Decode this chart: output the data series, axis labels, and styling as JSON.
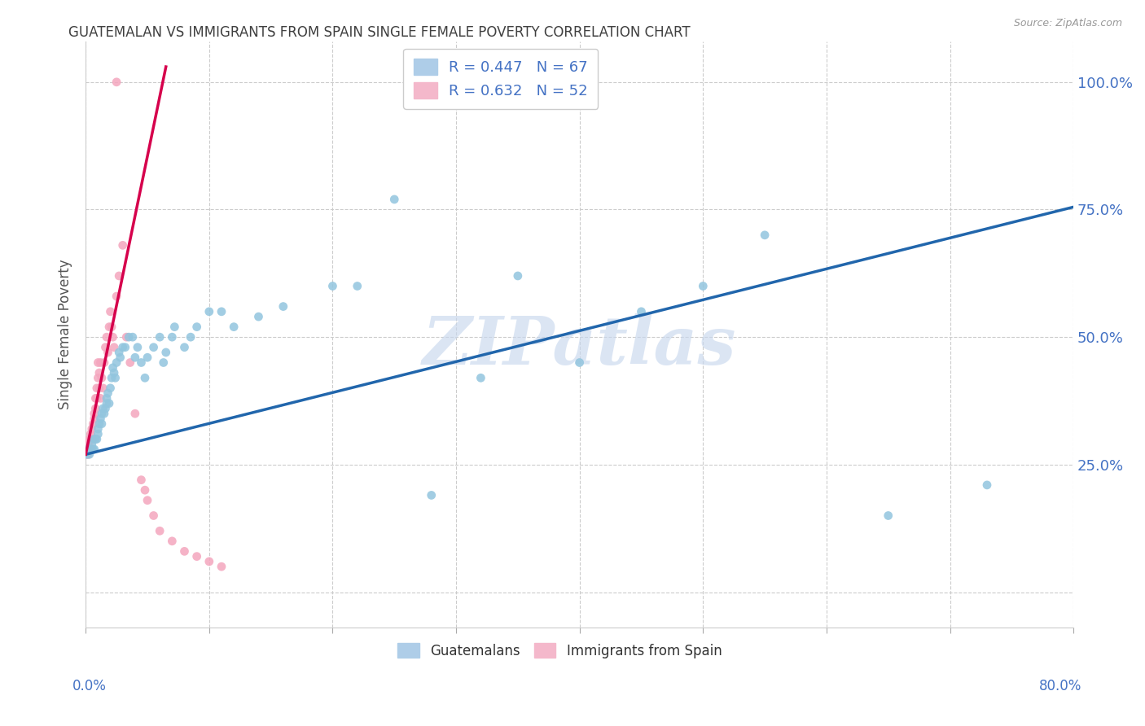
{
  "title": "GUATEMALAN VS IMMIGRANTS FROM SPAIN SINGLE FEMALE POVERTY CORRELATION CHART",
  "source": "Source: ZipAtlas.com",
  "ylabel": "Single Female Poverty",
  "yticks": [
    0.0,
    0.25,
    0.5,
    0.75,
    1.0
  ],
  "ytick_labels_right": [
    "",
    "25.0%",
    "50.0%",
    "75.0%",
    "100.0%"
  ],
  "xlim": [
    0.0,
    0.8
  ],
  "ylim": [
    -0.07,
    1.08
  ],
  "watermark": "ZIPatlas",
  "legend_blue_r": "R = 0.447",
  "legend_blue_n": "N = 67",
  "legend_pink_r": "R = 0.632",
  "legend_pink_n": "N = 52",
  "legend_label_blue": "Guatemalans",
  "legend_label_pink": "Immigrants from Spain",
  "blue_color": "#92c5de",
  "pink_color": "#f4a6be",
  "blue_line_color": "#2166ac",
  "pink_line_color": "#d6004c",
  "axis_color": "#4472c4",
  "title_color": "#404040",
  "blue_x": [
    0.001,
    0.002,
    0.003,
    0.004,
    0.005,
    0.005,
    0.006,
    0.007,
    0.007,
    0.008,
    0.009,
    0.01,
    0.01,
    0.011,
    0.012,
    0.013,
    0.013,
    0.014,
    0.015,
    0.016,
    0.017,
    0.017,
    0.018,
    0.019,
    0.02,
    0.021,
    0.022,
    0.023,
    0.024,
    0.025,
    0.027,
    0.028,
    0.03,
    0.032,
    0.035,
    0.038,
    0.04,
    0.042,
    0.045,
    0.048,
    0.05,
    0.055,
    0.06,
    0.063,
    0.065,
    0.07,
    0.072,
    0.08,
    0.085,
    0.09,
    0.1,
    0.11,
    0.12,
    0.14,
    0.16,
    0.2,
    0.22,
    0.25,
    0.28,
    0.32,
    0.35,
    0.4,
    0.45,
    0.5,
    0.55,
    0.65,
    0.73
  ],
  "blue_y": [
    0.27,
    0.28,
    0.27,
    0.28,
    0.28,
    0.29,
    0.28,
    0.28,
    0.3,
    0.3,
    0.3,
    0.32,
    0.31,
    0.33,
    0.34,
    0.33,
    0.35,
    0.36,
    0.35,
    0.36,
    0.38,
    0.37,
    0.39,
    0.37,
    0.4,
    0.42,
    0.44,
    0.43,
    0.42,
    0.45,
    0.47,
    0.46,
    0.48,
    0.48,
    0.5,
    0.5,
    0.46,
    0.48,
    0.45,
    0.42,
    0.46,
    0.48,
    0.5,
    0.45,
    0.47,
    0.5,
    0.52,
    0.48,
    0.5,
    0.52,
    0.55,
    0.55,
    0.52,
    0.54,
    0.56,
    0.6,
    0.6,
    0.77,
    0.19,
    0.42,
    0.62,
    0.45,
    0.55,
    0.6,
    0.7,
    0.15,
    0.21
  ],
  "pink_x": [
    0.001,
    0.001,
    0.002,
    0.002,
    0.003,
    0.003,
    0.004,
    0.004,
    0.005,
    0.005,
    0.006,
    0.006,
    0.007,
    0.007,
    0.008,
    0.008,
    0.009,
    0.009,
    0.01,
    0.01,
    0.011,
    0.011,
    0.012,
    0.012,
    0.013,
    0.014,
    0.015,
    0.016,
    0.017,
    0.018,
    0.019,
    0.02,
    0.021,
    0.022,
    0.023,
    0.025,
    0.027,
    0.03,
    0.033,
    0.036,
    0.04,
    0.045,
    0.048,
    0.05,
    0.055,
    0.06,
    0.07,
    0.08,
    0.09,
    0.1,
    0.11,
    0.025
  ],
  "pink_y": [
    0.27,
    0.28,
    0.27,
    0.29,
    0.28,
    0.3,
    0.3,
    0.31,
    0.32,
    0.28,
    0.3,
    0.33,
    0.35,
    0.34,
    0.38,
    0.36,
    0.4,
    0.38,
    0.42,
    0.45,
    0.4,
    0.43,
    0.45,
    0.38,
    0.42,
    0.4,
    0.45,
    0.48,
    0.5,
    0.47,
    0.52,
    0.55,
    0.52,
    0.5,
    0.48,
    0.58,
    0.62,
    0.68,
    0.5,
    0.45,
    0.35,
    0.22,
    0.2,
    0.18,
    0.15,
    0.12,
    0.1,
    0.08,
    0.07,
    0.06,
    0.05,
    1.0
  ],
  "blue_line_x": [
    0.0,
    0.8
  ],
  "blue_line_y": [
    0.27,
    0.755
  ],
  "pink_line_x": [
    0.0,
    0.065
  ],
  "pink_line_y": [
    0.27,
    1.03
  ]
}
